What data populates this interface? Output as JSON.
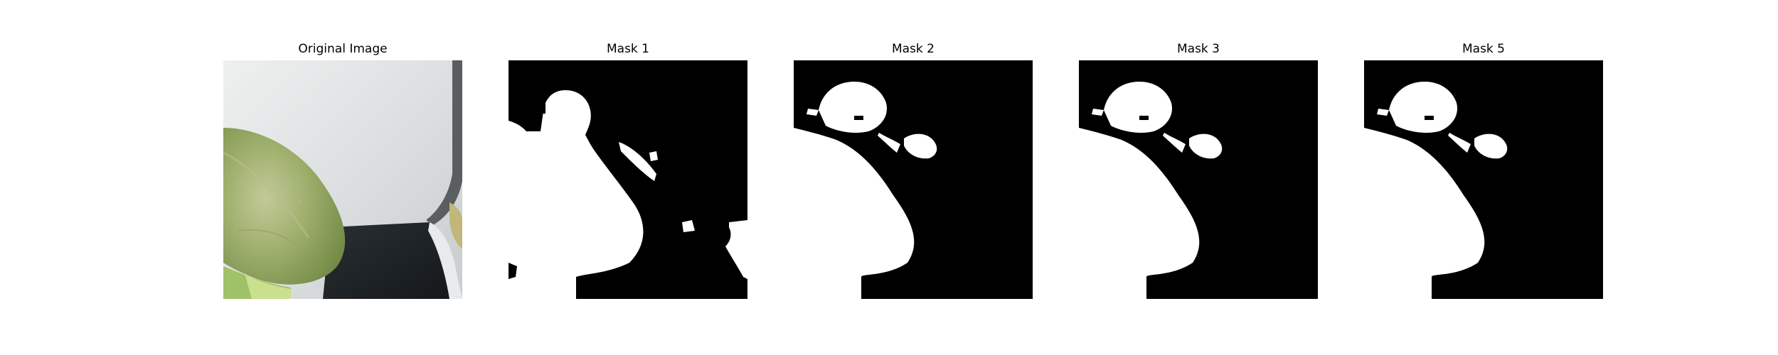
{
  "figure": {
    "panels": [
      {
        "id": "original",
        "title": "Original Image",
        "kind": "photo"
      },
      {
        "id": "mask1",
        "title": "Mask 1",
        "kind": "mask"
      },
      {
        "id": "mask2",
        "title": "Mask 2",
        "kind": "mask"
      },
      {
        "id": "mask3",
        "title": "Mask 3",
        "kind": "mask"
      },
      {
        "id": "mask5",
        "title": "Mask 5",
        "kind": "mask"
      }
    ]
  },
  "colors": {
    "mask_foreground": "#ffffff",
    "mask_background": "#000000",
    "leaf": "#9aaf66",
    "wall": "#dcdfe0",
    "shadow": "#1e2226"
  }
}
